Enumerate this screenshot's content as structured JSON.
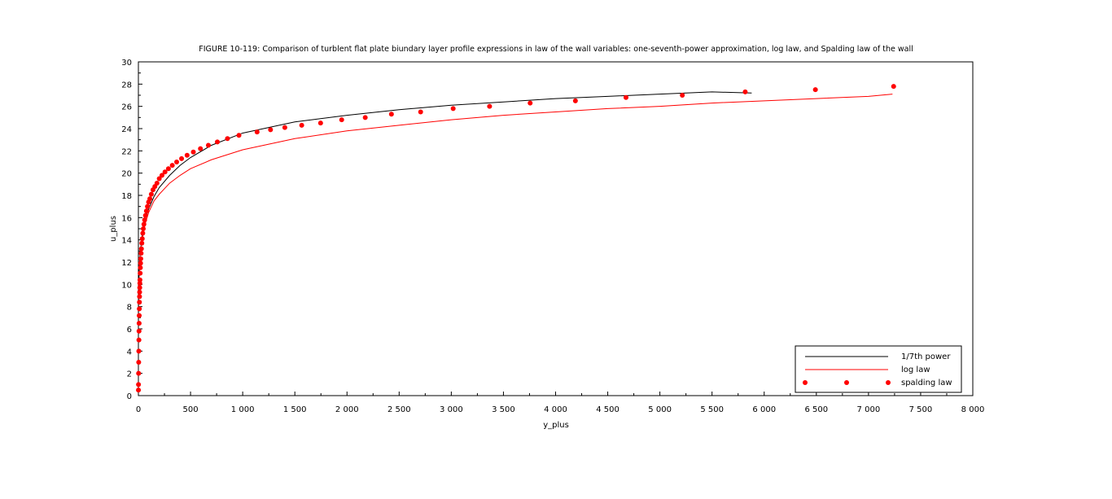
{
  "chart_data": {
    "type": "line",
    "title": "FIGURE 10-119: Comparison of turblent flat plate biundary layer profile expressions in law of the wall variables: one-seventh-power approximation, log law, and Spalding law of the wall",
    "xlabel": "y_plus",
    "ylabel": "u_plus",
    "xlim": [
      0,
      8000
    ],
    "ylim": [
      0,
      30
    ],
    "xticks": [
      0,
      500,
      1000,
      1500,
      2000,
      2500,
      3000,
      3500,
      4000,
      4500,
      5000,
      5500,
      6000,
      6500,
      7000,
      7500,
      8000
    ],
    "xtick_labels": [
      "0",
      "500",
      "1 000",
      "1 500",
      "2 000",
      "2 500",
      "3 000",
      "3 500",
      "4 000",
      "4 500",
      "5 000",
      "5 500",
      "6 000",
      "6 500",
      "7 000",
      "7 500",
      "8 000"
    ],
    "yticks": [
      0,
      2,
      4,
      6,
      8,
      10,
      12,
      14,
      16,
      18,
      20,
      22,
      24,
      26,
      28,
      30
    ],
    "ytick_labels": [
      "0",
      "2",
      "4",
      "6",
      "8",
      "10",
      "12",
      "14",
      "16",
      "18",
      "20",
      "22",
      "24",
      "26",
      "28",
      "30"
    ],
    "grid": false,
    "legend_position": "bottom-right",
    "series": [
      {
        "name": "1/7th power",
        "style": "line",
        "color": "#000000",
        "x": [
          0,
          0.1,
          0.5,
          1,
          3,
          10,
          20,
          40,
          70,
          100,
          150,
          200,
          300,
          400,
          500,
          700,
          1000,
          1500,
          2000,
          2500,
          3000,
          3500,
          4000,
          4500,
          5000,
          5500,
          5880
        ],
        "y": [
          0,
          5.1,
          7.3,
          8.3,
          9.7,
          11.8,
          13.1,
          14.6,
          16.0,
          16.8,
          17.9,
          18.7,
          19.8,
          20.7,
          21.4,
          22.5,
          23.6,
          24.6,
          25.2,
          25.7,
          26.1,
          26.4,
          26.7,
          26.9,
          27.1,
          27.3,
          27.2
        ]
      },
      {
        "name": "log law",
        "style": "line",
        "color": "#ff0000",
        "x": [
          30,
          50,
          70,
          100,
          150,
          200,
          300,
          400,
          500,
          700,
          1000,
          1500,
          2000,
          2500,
          3000,
          3500,
          4000,
          4500,
          5000,
          5500,
          6000,
          6500,
          7000,
          7230
        ],
        "y": [
          13.5,
          14.8,
          15.6,
          16.5,
          17.5,
          18.1,
          19.1,
          19.8,
          20.4,
          21.2,
          22.1,
          23.1,
          23.8,
          24.3,
          24.8,
          25.2,
          25.5,
          25.8,
          26.0,
          26.3,
          26.5,
          26.7,
          26.9,
          27.1
        ]
      },
      {
        "name": "spalding law",
        "style": "markers",
        "color": "#ff0000",
        "x": [
          0.5,
          1,
          2,
          3,
          4,
          5,
          6,
          7,
          8,
          9,
          10,
          11,
          12,
          13,
          14,
          15,
          17,
          19,
          21,
          23,
          26,
          29,
          33,
          37,
          42,
          47,
          53,
          60,
          68,
          77,
          87,
          98,
          110,
          124,
          140,
          158,
          178,
          200,
          226,
          255,
          288,
          325,
          367,
          414,
          467,
          527,
          595,
          671,
          757,
          854,
          964,
          1138,
          1267,
          1404,
          1566,
          1747,
          1949,
          2175,
          2426,
          2706,
          3018,
          3367,
          3756,
          4190,
          4675,
          5215,
          5818,
          6491,
          7241
        ],
        "y": [
          0.5,
          1.0,
          2.0,
          3.0,
          4.0,
          5.0,
          5.8,
          6.5,
          7.2,
          7.8,
          8.4,
          8.9,
          9.3,
          9.7,
          10.1,
          10.4,
          11.0,
          11.5,
          11.9,
          12.3,
          12.8,
          13.2,
          13.7,
          14.1,
          14.6,
          15.0,
          15.4,
          15.8,
          16.2,
          16.6,
          17.0,
          17.4,
          17.7,
          18.1,
          18.5,
          18.8,
          19.1,
          19.5,
          19.8,
          20.1,
          20.4,
          20.7,
          21.0,
          21.3,
          21.6,
          21.9,
          22.2,
          22.5,
          22.8,
          23.1,
          23.4,
          23.7,
          23.9,
          24.1,
          24.3,
          24.5,
          24.8,
          25.0,
          25.3,
          25.5,
          25.8,
          26.0,
          26.3,
          26.5,
          26.8,
          27.0,
          27.3,
          27.5,
          27.8
        ]
      }
    ]
  }
}
